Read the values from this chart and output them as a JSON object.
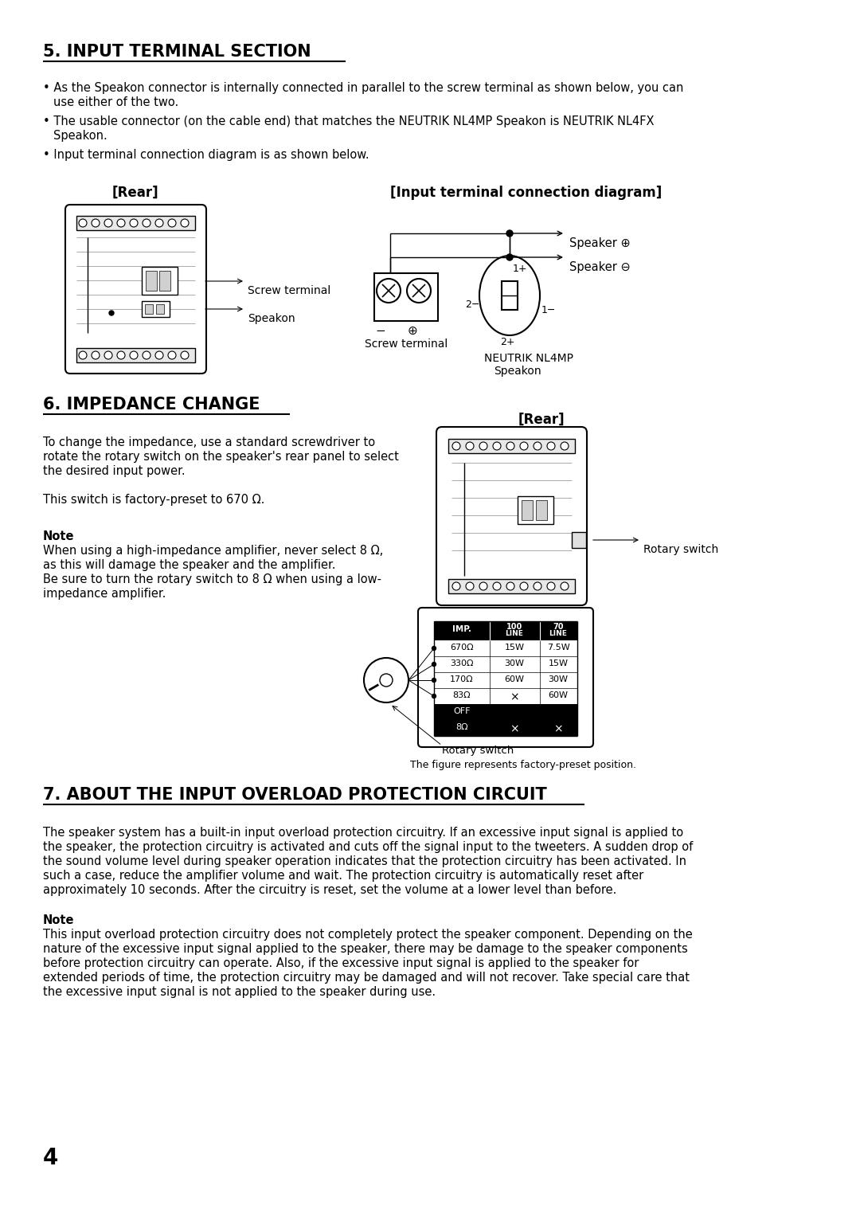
{
  "title5": "5. INPUT TERMINAL SECTION",
  "title6": "6. IMPEDANCE CHANGE",
  "title7": "7. ABOUT THE INPUT OVERLOAD PROTECTION CIRCUIT",
  "bg_color": "#ffffff",
  "text_color": "#000000",
  "page_number": "4"
}
